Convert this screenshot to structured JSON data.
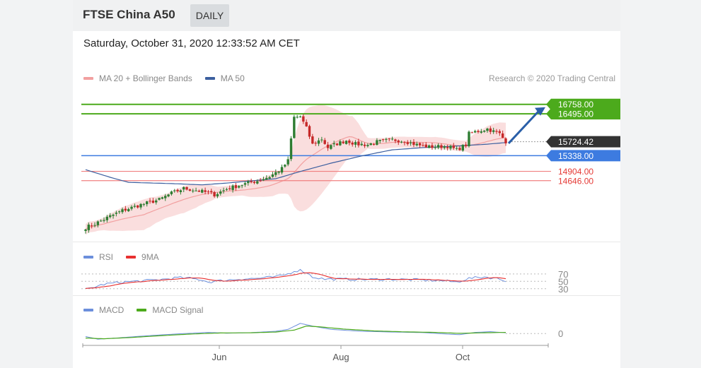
{
  "header": {
    "symbol": "FTSE China A50",
    "period": "DAILY"
  },
  "datetime": "Saturday, October 31, 2020 12:33:52 AM CET",
  "credit": "Research © 2020 Trading Central",
  "colors": {
    "bollinger": "#f2a0a0",
    "ma50": "#3c5f9f",
    "rsi": "#6c8fdc",
    "rsi_ma": "#e83030",
    "macd": "#6c8fdc",
    "macd_signal": "#4caa1c",
    "resistance": "#4caa1c",
    "support": "#f08080",
    "pivot": "#3d7be0",
    "up_candle": "#2e7d32",
    "down_candle": "#c62828"
  },
  "chart_data": {
    "type": "candlestick",
    "price_legend": [
      {
        "name": "MA 20 + Bollinger Bands",
        "color": "#f2a0a0"
      },
      {
        "name": "MA 50",
        "color": "#3c5f9f"
      }
    ],
    "x_ticks": [
      "Jun",
      "Aug",
      "Oct"
    ],
    "price_ylim": [
      13000,
      17300
    ],
    "levels": {
      "resistance_2": "16758.00",
      "resistance_1": "16495.00",
      "last": "15724.42",
      "pivot": "15338.00",
      "support_1": "14904.00",
      "support_2": "14646.00"
    },
    "close_anchors": [
      [
        0,
        13350
      ],
      [
        3,
        13450
      ],
      [
        7,
        13620
      ],
      [
        12,
        13820
      ],
      [
        18,
        13980
      ],
      [
        24,
        14120
      ],
      [
        28,
        14300
      ],
      [
        32,
        14430
      ],
      [
        36,
        14380
      ],
      [
        40,
        14310
      ],
      [
        42,
        14260
      ],
      [
        46,
        14420
      ],
      [
        52,
        14560
      ],
      [
        56,
        14640
      ],
      [
        60,
        14760
      ],
      [
        64,
        14980
      ],
      [
        66,
        15200
      ],
      [
        67,
        15800
      ],
      [
        68,
        16400
      ],
      [
        70,
        16420
      ],
      [
        72,
        16100
      ],
      [
        74,
        15650
      ],
      [
        75,
        15700
      ],
      [
        77,
        15800
      ],
      [
        79,
        15560
      ],
      [
        81,
        15640
      ],
      [
        85,
        15760
      ],
      [
        88,
        15660
      ],
      [
        92,
        15640
      ],
      [
        95,
        15720
      ],
      [
        100,
        15780
      ],
      [
        104,
        15740
      ],
      [
        108,
        15640
      ],
      [
        112,
        15580
      ],
      [
        118,
        15600
      ],
      [
        121,
        15500
      ],
      [
        124,
        15640
      ],
      [
        125,
        15950
      ],
      [
        127,
        16000
      ],
      [
        131,
        16080
      ],
      [
        135,
        15940
      ],
      [
        137,
        15730
      ]
    ],
    "ma50_anchors": [
      [
        0,
        14950
      ],
      [
        8,
        14740
      ],
      [
        14,
        14600
      ],
      [
        22,
        14580
      ],
      [
        30,
        14560
      ],
      [
        38,
        14530
      ],
      [
        46,
        14580
      ],
      [
        54,
        14640
      ],
      [
        62,
        14700
      ],
      [
        70,
        14900
      ],
      [
        80,
        15130
      ],
      [
        90,
        15330
      ],
      [
        100,
        15500
      ],
      [
        110,
        15560
      ],
      [
        120,
        15600
      ],
      [
        130,
        15650
      ],
      [
        137,
        15700
      ]
    ],
    "rsi": {
      "legend": [
        {
          "name": "RSI",
          "color": "#6c8fdc"
        },
        {
          "name": "9MA",
          "color": "#e83030"
        }
      ],
      "levels": [
        70,
        50,
        30
      ],
      "ylim": [
        20,
        85
      ],
      "anchors": [
        [
          0,
          28
        ],
        [
          6,
          42
        ],
        [
          12,
          48
        ],
        [
          20,
          52
        ],
        [
          26,
          56
        ],
        [
          30,
          60
        ],
        [
          34,
          58
        ],
        [
          38,
          54
        ],
        [
          40,
          48
        ],
        [
          44,
          52
        ],
        [
          50,
          56
        ],
        [
          56,
          58
        ],
        [
          62,
          62
        ],
        [
          66,
          70
        ],
        [
          68,
          78
        ],
        [
          70,
          80
        ],
        [
          72,
          74
        ],
        [
          74,
          62
        ],
        [
          78,
          56
        ],
        [
          84,
          56
        ],
        [
          92,
          55
        ],
        [
          100,
          56
        ],
        [
          108,
          54
        ],
        [
          116,
          52
        ],
        [
          121,
          48
        ],
        [
          125,
          58
        ],
        [
          130,
          62
        ],
        [
          134,
          58
        ],
        [
          137,
          52
        ]
      ]
    },
    "macd": {
      "legend": [
        {
          "name": "MACD",
          "color": "#6c8fdc"
        },
        {
          "name": "MACD Signal",
          "color": "#4caa1c"
        }
      ],
      "zero_label": "0",
      "ylim": [
        -260,
        380
      ],
      "macd_anchors": [
        [
          0,
          -80
        ],
        [
          4,
          -150
        ],
        [
          10,
          -120
        ],
        [
          20,
          -60
        ],
        [
          30,
          -10
        ],
        [
          40,
          30
        ],
        [
          46,
          10
        ],
        [
          54,
          25
        ],
        [
          62,
          60
        ],
        [
          66,
          110
        ],
        [
          70,
          270
        ],
        [
          74,
          200
        ],
        [
          80,
          110
        ],
        [
          90,
          60
        ],
        [
          100,
          40
        ],
        [
          110,
          25
        ],
        [
          118,
          -15
        ],
        [
          122,
          -30
        ],
        [
          127,
          30
        ],
        [
          132,
          50
        ],
        [
          137,
          20
        ]
      ],
      "signal_anchors": [
        [
          0,
          -120
        ],
        [
          6,
          -140
        ],
        [
          14,
          -110
        ],
        [
          24,
          -60
        ],
        [
          34,
          -15
        ],
        [
          44,
          15
        ],
        [
          54,
          20
        ],
        [
          62,
          40
        ],
        [
          68,
          90
        ],
        [
          72,
          200
        ],
        [
          76,
          180
        ],
        [
          84,
          120
        ],
        [
          94,
          70
        ],
        [
          104,
          45
        ],
        [
          114,
          30
        ],
        [
          122,
          5
        ],
        [
          130,
          20
        ],
        [
          137,
          30
        ]
      ]
    }
  }
}
